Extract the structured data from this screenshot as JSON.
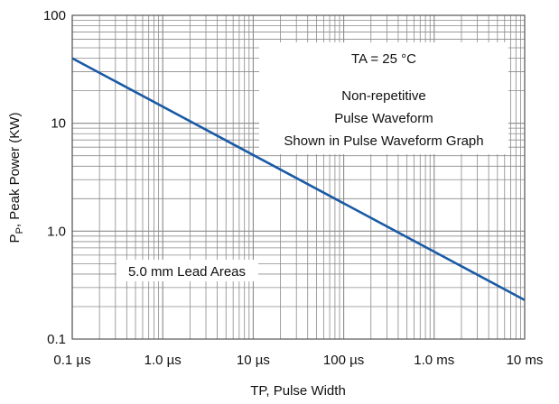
{
  "colors": {
    "series": "#1a5aa6",
    "grid": "#8a8a8a",
    "annotation_bg": "#ffffff"
  },
  "chart_data": {
    "type": "line",
    "title": "",
    "xlabel": "TP, Pulse Width",
    "ylabel": "PP, Peak Power (KW)",
    "ylabel_parts": {
      "main": "P",
      "sub": "P",
      "rest": ", Peak Power (KW)"
    },
    "x_scale": "log",
    "y_scale": "log",
    "x_unit": "s",
    "y_unit": "kW",
    "xlim": [
      1e-07,
      0.01
    ],
    "ylim": [
      0.1,
      100
    ],
    "grid": true,
    "x_ticks": [
      {
        "value": 1e-07,
        "label": "0.1 µs"
      },
      {
        "value": 1e-06,
        "label": "1.0 µs"
      },
      {
        "value": 1e-05,
        "label": "10 µs"
      },
      {
        "value": 0.0001,
        "label": "100 µs"
      },
      {
        "value": 0.001,
        "label": "1.0 ms"
      },
      {
        "value": 0.01,
        "label": "10 ms"
      }
    ],
    "y_ticks": [
      {
        "value": 0.1,
        "label": "0.1"
      },
      {
        "value": 1,
        "label": "1.0"
      },
      {
        "value": 10,
        "label": "10"
      },
      {
        "value": 100,
        "label": "100"
      }
    ],
    "series": [
      {
        "x": [
          1e-07,
          0.01
        ],
        "y": [
          40,
          0.23
        ]
      }
    ],
    "annotations": {
      "conditions": [
        "TA = 25 °C",
        "",
        "Non-repetitive",
        "Pulse Waveform",
        "Shown in Pulse Waveform Graph"
      ],
      "lead_area": "5.0 mm Lead Areas"
    }
  }
}
